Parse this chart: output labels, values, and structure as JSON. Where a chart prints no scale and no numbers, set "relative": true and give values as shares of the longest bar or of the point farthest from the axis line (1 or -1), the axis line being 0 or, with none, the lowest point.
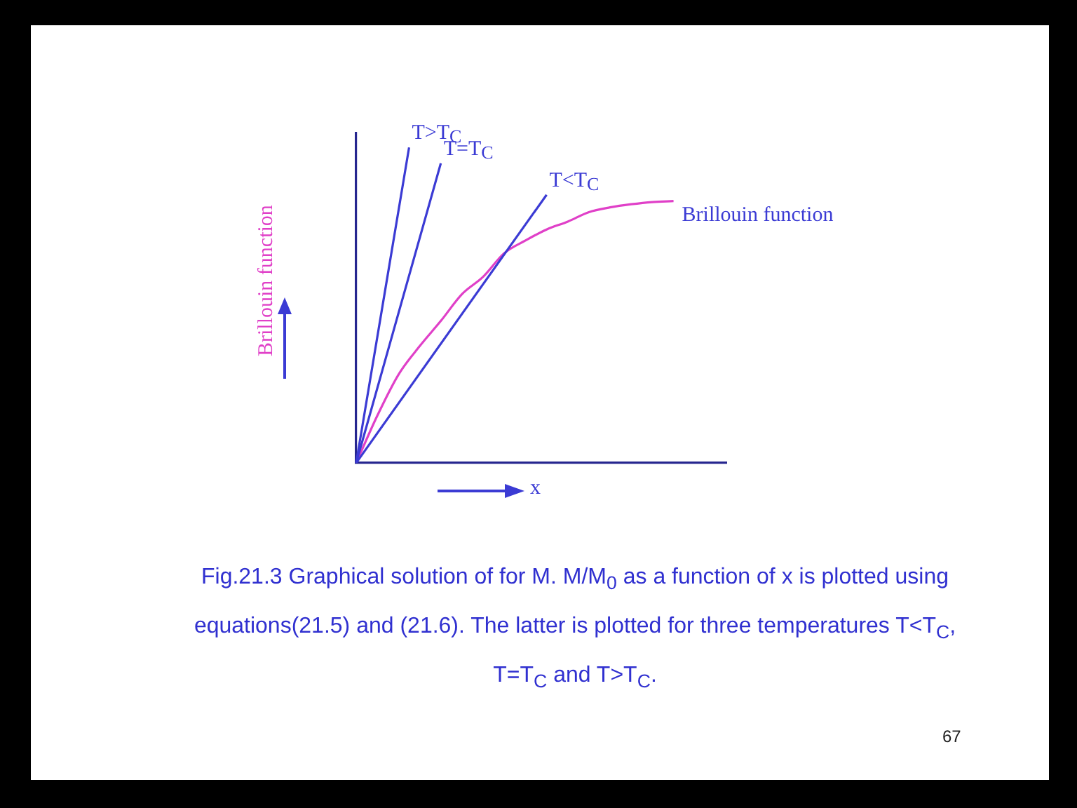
{
  "chart_data": {
    "type": "line",
    "relative": true,
    "tick_labels": false,
    "xlabel": "x",
    "ylabel": "Brillouin function",
    "categories": [
      null,
      null,
      null,
      null,
      null,
      null,
      null,
      null,
      null,
      null,
      null,
      null,
      null,
      null,
      null,
      null,
      null,
      null,
      null,
      null,
      null,
      null,
      null,
      null,
      null,
      null,
      null,
      null,
      null,
      null,
      null,
      null,
      null,
      null,
      null,
      null
    ],
    "series": [
      {
        "name": "T>T$_{C}$",
        "color": "#3b3bd4",
        "values": [
          0,
          null,
          null,
          null,
          null,
          1,
          null,
          null,
          null,
          null,
          null,
          null,
          null,
          null,
          null,
          null,
          null,
          null,
          null,
          null,
          null,
          null,
          null,
          null,
          null,
          null,
          null,
          null,
          null,
          null,
          null,
          null,
          null,
          null,
          null,
          null
        ]
      },
      {
        "name": "T=T$_{C}$",
        "color": "#3b3bd4",
        "values": [
          0,
          null,
          null,
          null,
          null,
          null,
          null,
          null,
          0.95,
          null,
          null,
          null,
          null,
          null,
          null,
          null,
          null,
          null,
          null,
          null,
          null,
          null,
          null,
          null,
          null,
          null,
          null,
          null,
          null,
          null,
          null,
          null,
          null,
          null,
          null,
          null
        ]
      },
      {
        "name": "T<T$_{C}$",
        "color": "#3b3bd4",
        "values": [
          0,
          null,
          null,
          null,
          null,
          null,
          null,
          null,
          null,
          null,
          null,
          null,
          null,
          null,
          null,
          null,
          null,
          null,
          0.85,
          null,
          null,
          null,
          null,
          null,
          null,
          null,
          null,
          null,
          null,
          null,
          null,
          null,
          null,
          null,
          null,
          null
        ]
      },
      {
        "name": "Brillouin function",
        "color": "#e040c8",
        "values": [
          0,
          null,
          0.15,
          null,
          0.28,
          null,
          0.37,
          null,
          0.45,
          null,
          0.535,
          null,
          0.59,
          null,
          0.665,
          null,
          0.705,
          null,
          0.74,
          null,
          0.765,
          null,
          0.795,
          null,
          0.81,
          null,
          0.82,
          null,
          0.827,
          null,
          0.83,
          null,
          null,
          null,
          null,
          null
        ]
      }
    ],
    "annotations": [
      "Fig.21.3  Graphical solution of for M. M/M$_{0}$ as a function of x is plotted using equations(21.5) and (21.6). The latter is plotted for three temperatures T<T$_{C}$, T=T$_{C}$ and T>T$_{C}$.",
      "67"
    ]
  }
}
